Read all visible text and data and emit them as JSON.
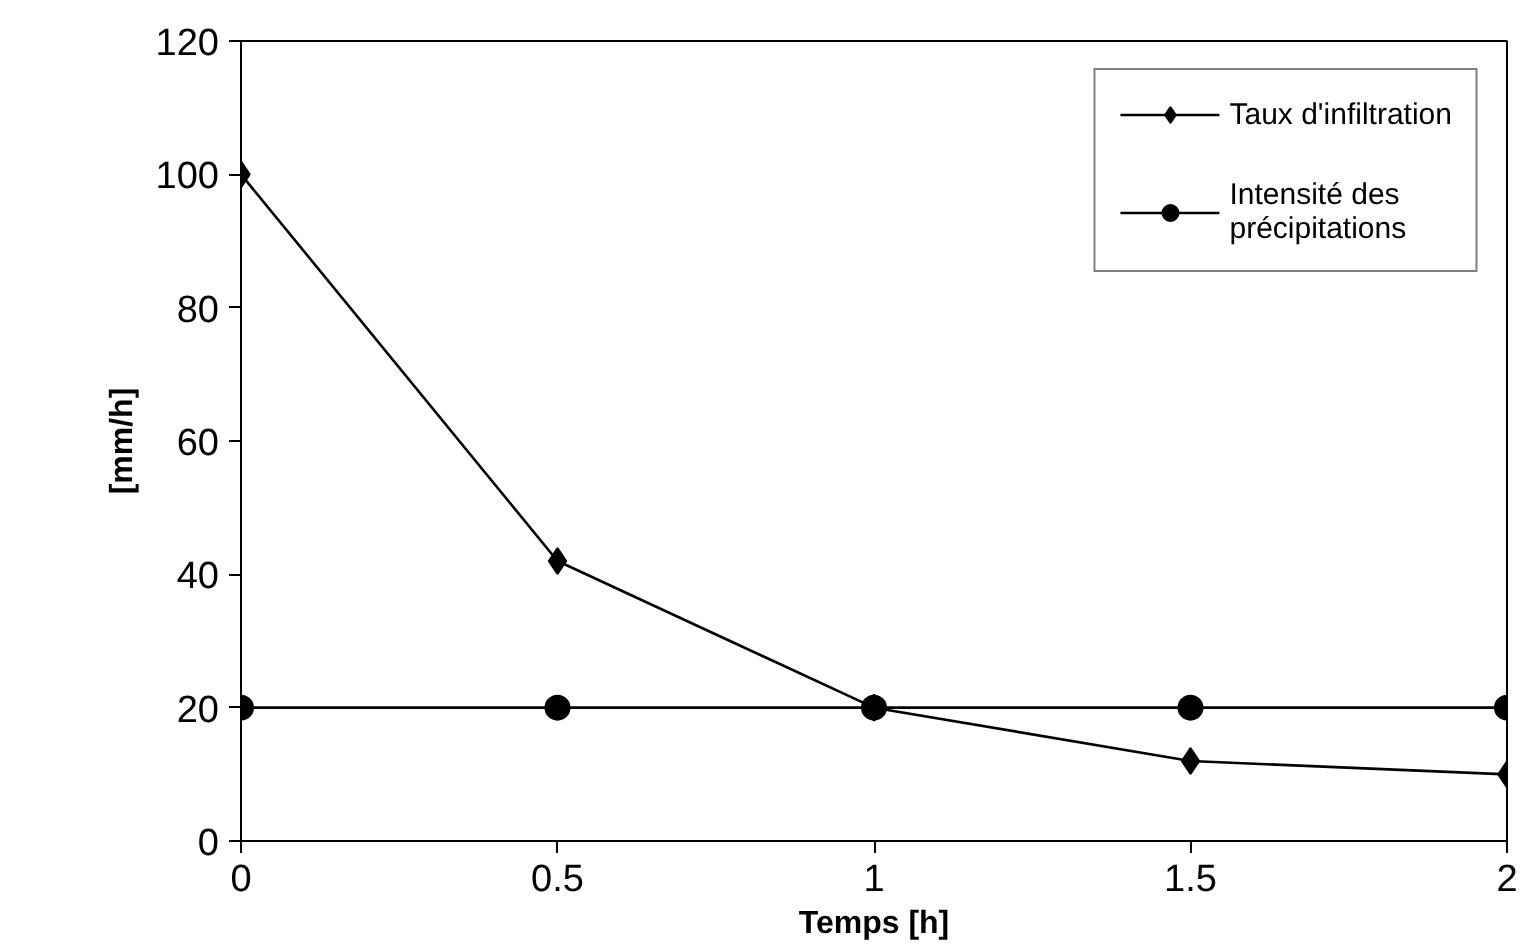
{
  "chart_data": {
    "type": "line",
    "xlabel": "Temps [h]",
    "ylabel": "[mm/h]",
    "x": [
      0,
      0.5,
      1,
      1.5,
      2
    ],
    "series": [
      {
        "name": "Taux d'infiltration",
        "color": "#000000",
        "marker": "diamond",
        "values": [
          100,
          42,
          20,
          12,
          10
        ]
      },
      {
        "name": "Intensité des\nprécipitations",
        "color": "#000000",
        "marker": "circle",
        "values": [
          20,
          20,
          20,
          20,
          20
        ]
      }
    ],
    "xlim": [
      0,
      2
    ],
    "xticks": [
      0,
      0.5,
      1,
      1.5,
      2
    ],
    "ylim": [
      0,
      120
    ],
    "yticks": [
      0,
      20,
      40,
      60,
      80,
      100,
      120
    ],
    "grid": false,
    "legend": "top right",
    "line_style": "solid"
  }
}
